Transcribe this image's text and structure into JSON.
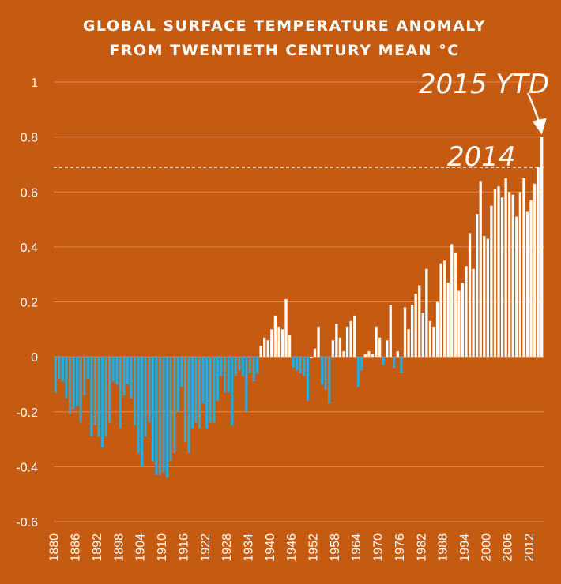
{
  "chart_data": {
    "type": "bar",
    "title_lines": [
      "GLOBAL SURFACE TEMPERATURE ANOMALY",
      "FROM TWENTIETH CENTURY MEAN °C"
    ],
    "xlabel": "",
    "ylabel": "",
    "ylim": [
      -0.6,
      1.0
    ],
    "yticks": [
      "1",
      "0.8",
      "0.6",
      "0.4",
      "0.2",
      "0",
      "-0.2",
      "-0.4",
      "-0.6"
    ],
    "ytick_values": [
      1,
      0.8,
      0.6,
      0.4,
      0.2,
      0,
      -0.2,
      -0.4,
      -0.6
    ],
    "xtick_labels": [
      "1880",
      "1886",
      "1892",
      "1898",
      "1904",
      "1910",
      "1916",
      "1922",
      "1928",
      "1934",
      "1940",
      "1946",
      "1952",
      "1958",
      "1964",
      "1970",
      "1976",
      "1982",
      "1988",
      "1994",
      "2000",
      "2006",
      "2012"
    ],
    "grid": true,
    "colors": {
      "background": "#c55a11",
      "negative": "#2ea8d6",
      "positive": "#ffffff",
      "grid": "#dd8a55"
    },
    "start_year": 1880,
    "values": [
      -0.13,
      -0.08,
      -0.09,
      -0.15,
      -0.21,
      -0.19,
      -0.18,
      -0.24,
      -0.14,
      -0.08,
      -0.29,
      -0.25,
      -0.29,
      -0.33,
      -0.29,
      -0.24,
      -0.09,
      -0.1,
      -0.26,
      -0.14,
      -0.1,
      -0.15,
      -0.25,
      -0.35,
      -0.4,
      -0.29,
      -0.24,
      -0.38,
      -0.43,
      -0.43,
      -0.42,
      -0.44,
      -0.38,
      -0.35,
      -0.2,
      -0.11,
      -0.31,
      -0.35,
      -0.26,
      -0.24,
      -0.26,
      -0.17,
      -0.26,
      -0.24,
      -0.24,
      -0.16,
      -0.07,
      -0.13,
      -0.13,
      -0.25,
      -0.07,
      -0.05,
      -0.07,
      -0.2,
      -0.06,
      -0.09,
      -0.06,
      0.04,
      0.07,
      0.06,
      0.1,
      0.15,
      0.11,
      0.1,
      0.21,
      0.08,
      -0.04,
      -0.05,
      -0.06,
      -0.07,
      -0.16,
      0.0,
      0.03,
      0.11,
      -0.1,
      -0.12,
      -0.17,
      0.06,
      0.12,
      0.07,
      0.02,
      0.11,
      0.13,
      0.15,
      -0.11,
      -0.05,
      0.01,
      0.02,
      0.01,
      0.11,
      0.07,
      -0.03,
      0.06,
      0.19,
      -0.04,
      0.02,
      -0.06,
      0.18,
      0.1,
      0.19,
      0.23,
      0.26,
      0.16,
      0.32,
      0.13,
      0.11,
      0.2,
      0.34,
      0.35,
      0.27,
      0.41,
      0.38,
      0.24,
      0.27,
      0.33,
      0.45,
      0.32,
      0.52,
      0.64,
      0.44,
      0.43,
      0.55,
      0.61,
      0.62,
      0.58,
      0.65,
      0.6,
      0.59,
      0.51,
      0.6,
      0.65,
      0.53,
      0.57,
      0.63,
      0.69,
      0.8
    ],
    "reference_line": {
      "label": "2014",
      "value": 0.69
    },
    "annotations": [
      {
        "label": "2015 YTD",
        "value": 0.8
      }
    ]
  }
}
